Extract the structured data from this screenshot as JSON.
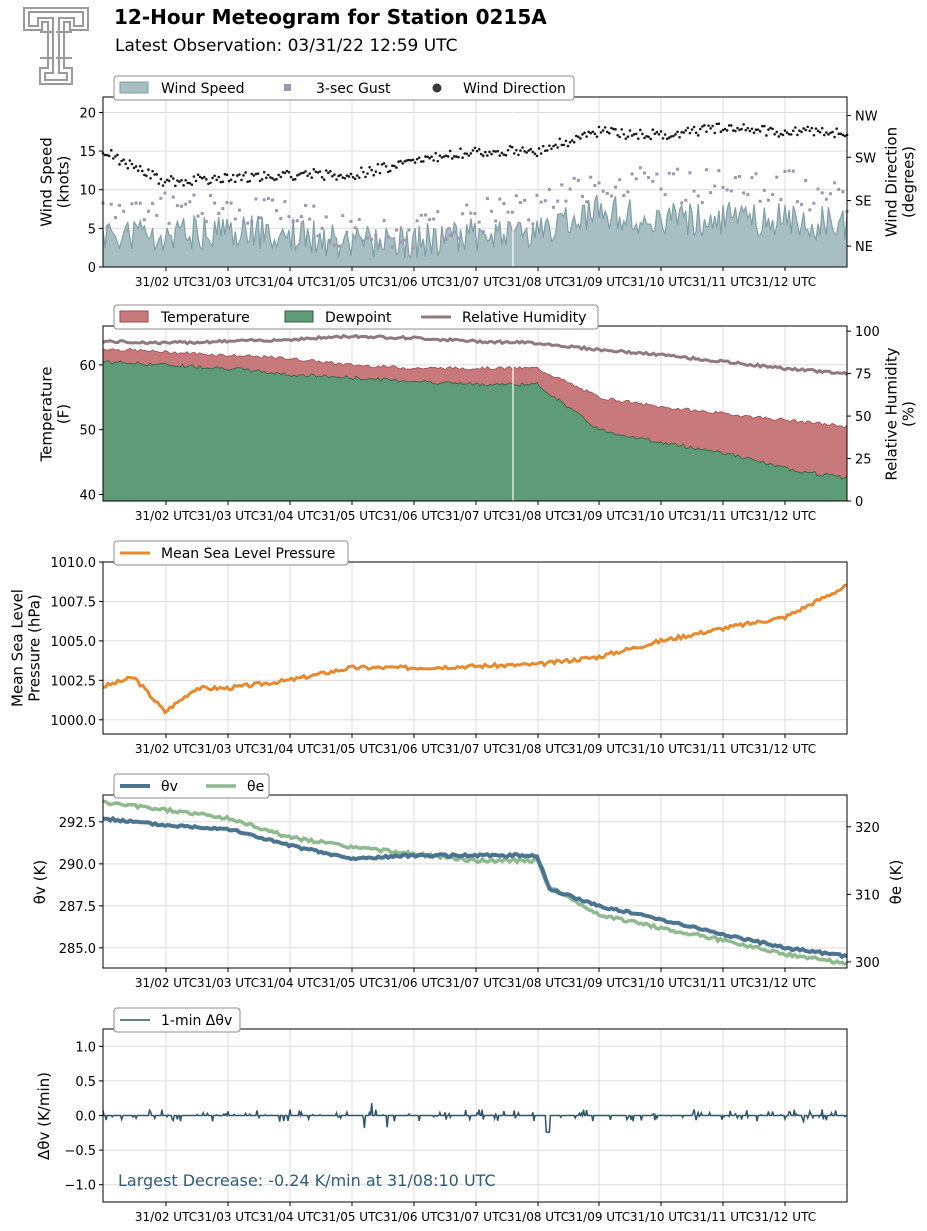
{
  "header": {
    "title": "12-Hour Meteogram for Station 0215A",
    "subtitle": "Latest Observation: 03/31/22 12:59 UTC"
  },
  "colors": {
    "wind_speed": "#7f9fa6",
    "gust": "#8a7d9e",
    "direction": "#1a1a1a",
    "temperature": "#b24c52",
    "dewpoint": "#2e7d4f",
    "rh": "#8f7a7d",
    "pressure": "#e8892e",
    "theta_v": "#4a7490",
    "theta_e": "#8fb98f",
    "dtheta": "#2f5567",
    "annotation": "#2f5d78"
  },
  "x_ticks": [
    "31/02 UTC",
    "31/03 UTC",
    "31/04 UTC",
    "31/05 UTC",
    "31/06 UTC",
    "31/07 UTC",
    "31/08 UTC",
    "31/09 UTC",
    "31/10 UTC",
    "31/11 UTC",
    "31/12 UTC"
  ],
  "chart_data": [
    {
      "type": "area",
      "legend": [
        "Wind Speed",
        "3-sec Gust",
        "Wind Direction"
      ],
      "ylabel": "Wind Speed\n(knots)",
      "ylabel2": "Wind Direction\n(degrees)",
      "ylim": [
        0,
        22
      ],
      "yticks": [
        "0",
        "5",
        "10",
        "15",
        "20"
      ],
      "y2ticks": [
        "NE",
        "SE",
        "SW",
        "NW"
      ],
      "x_hours": [
        0,
        1,
        2,
        3,
        4,
        5,
        6,
        7,
        8,
        9,
        10,
        11,
        12
      ],
      "series": [
        {
          "name": "Wind Speed",
          "values": [
            4,
            4,
            4.5,
            4,
            3,
            3,
            4,
            4,
            7,
            6,
            6,
            6,
            5
          ]
        },
        {
          "name": "3-sec Gust",
          "values": [
            6,
            7,
            7,
            6,
            4,
            4,
            6,
            7,
            11,
            10,
            10,
            10,
            8
          ]
        },
        {
          "name": "Wind Direction",
          "values": [
            15,
            11,
            11.5,
            12,
            12,
            13.5,
            15,
            15,
            17.5,
            17,
            18,
            17.5,
            17.5
          ]
        }
      ]
    },
    {
      "type": "area",
      "legend": [
        "Temperature",
        "Dewpoint",
        "Relative Humidity"
      ],
      "ylabel": "Temperature\n(F)",
      "ylabel2": "Relative Humidity\n(%)",
      "ylim": [
        39,
        66
      ],
      "y2lim": [
        0,
        103
      ],
      "yticks": [
        "40",
        "50",
        "60"
      ],
      "y2ticks": [
        "0",
        "25",
        "50",
        "75",
        "100"
      ],
      "x_hours": [
        0,
        1,
        2,
        3,
        4,
        5,
        6,
        7,
        8,
        9,
        10,
        11,
        12
      ],
      "series": [
        {
          "name": "Temperature",
          "values": [
            62.5,
            62,
            61.5,
            61,
            60,
            59.5,
            59.5,
            59.5,
            55,
            53.5,
            52.5,
            51.5,
            50.5
          ]
        },
        {
          "name": "Dewpoint",
          "values": [
            60.5,
            60,
            59.5,
            58.5,
            58,
            57.5,
            57,
            57,
            50,
            48,
            46.5,
            44,
            42.5
          ]
        },
        {
          "name": "Relative Humidity",
          "values": [
            94,
            93,
            94,
            95,
            97,
            96,
            94,
            93,
            89,
            86,
            82,
            78,
            75
          ]
        }
      ]
    },
    {
      "type": "line",
      "legend": [
        "Mean Sea Level Pressure"
      ],
      "ylabel": "Mean Sea Level\nPressure (hPa)",
      "ylim": [
        999.1,
        1010
      ],
      "yticks": [
        "1000.0",
        "1002.5",
        "1005.0",
        "1007.5",
        "1010.0"
      ],
      "x_hours": [
        0,
        0.5,
        1,
        1.5,
        2,
        3,
        4,
        5,
        6,
        7,
        8,
        9,
        10,
        11,
        12
      ],
      "series": [
        {
          "name": "Mean Sea Level Pressure",
          "values": [
            1002.1,
            1002.7,
            1000.5,
            1002.0,
            1002.0,
            1002.5,
            1003.3,
            1003.3,
            1003.4,
            1003.5,
            1004.0,
            1005.0,
            1005.8,
            1006.5,
            1008.5
          ]
        }
      ]
    },
    {
      "type": "line",
      "legend": [
        "θv",
        "θe"
      ],
      "ylabel": "θv (K)",
      "ylabel2": "θe (K)",
      "ylim": [
        283.8,
        294.1
      ],
      "y2lim": [
        299.1,
        324.7
      ],
      "yticks": [
        "285.0",
        "287.5",
        "290.0",
        "292.5"
      ],
      "y2ticks": [
        "300",
        "310",
        "320"
      ],
      "x_hours": [
        0,
        1,
        2,
        3,
        4,
        5,
        6,
        7,
        7.2,
        8,
        9,
        10,
        11,
        12
      ],
      "series": [
        {
          "name": "θv",
          "values": [
            292.7,
            292.3,
            292.1,
            291.1,
            290.3,
            290.5,
            290.5,
            290.5,
            288.5,
            287.5,
            286.7,
            285.8,
            285.0,
            284.5
          ]
        },
        {
          "name": "θe",
          "values": [
            323.6,
            322.5,
            321.3,
            318.5,
            317.0,
            316.0,
            315.0,
            315.0,
            311.0,
            307.0,
            305.0,
            303.2,
            301.2,
            299.8
          ]
        }
      ]
    },
    {
      "type": "line",
      "legend": [
        "1-min Δθv"
      ],
      "ylabel": "Δθv (K/min)",
      "ylim": [
        -1.25,
        1.25
      ],
      "yticks": [
        "−1.0",
        "−0.5",
        "0.0",
        "0.5",
        "1.0"
      ],
      "annotation": "Largest Decrease: -0.24 K/min at 31/08:10 UTC",
      "series": [
        {
          "name": "1-min Δθv",
          "summary": "fluctuates around 0.0, range about -0.24 to 0.22"
        }
      ]
    }
  ]
}
